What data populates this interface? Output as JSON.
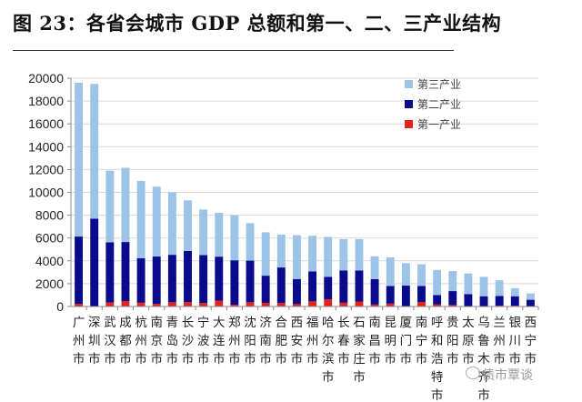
{
  "title": "图 23：各省会城市 GDP 总额和第一、二、三产业结构",
  "watermark": "债市覃谈",
  "chart_data": {
    "type": "bar",
    "stacked": true,
    "title": "图 23：各省会城市 GDP 总额和第一、二、三产业结构",
    "xlabel": "",
    "ylabel": "",
    "ylim": [
      0,
      20000
    ],
    "yticks": [
      0,
      2000,
      4000,
      6000,
      8000,
      10000,
      12000,
      14000,
      16000,
      18000,
      20000
    ],
    "grid": true,
    "legend_position": "top-right",
    "categories": [
      "广州市",
      "深圳市",
      "武汉市",
      "成都市",
      "杭州市",
      "南京市",
      "青岛市",
      "长沙市",
      "宁波市",
      "大连市",
      "郑州市",
      "沈阳市",
      "济南市",
      "合肥市",
      "西安市",
      "福州市",
      "哈尔滨市",
      "长春市",
      "石家庄市",
      "南昌市",
      "昆明市",
      "厦门市",
      "南宁市",
      "呼和浩特市",
      "贵阳市",
      "太原市",
      "乌鲁木齐市",
      "兰州市",
      "银川市",
      "西宁市"
    ],
    "series": [
      {
        "name": "第一产业",
        "color": "#e2231a",
        "values": [
          230,
          20,
          350,
          470,
          330,
          230,
          370,
          380,
          300,
          520,
          150,
          370,
          320,
          300,
          210,
          450,
          640,
          330,
          440,
          170,
          250,
          30,
          400,
          170,
          130,
          40,
          30,
          70,
          70,
          40
        ]
      },
      {
        "name": "第二产业",
        "color": "#0a0a8c",
        "values": [
          5900,
          7680,
          5280,
          5180,
          3900,
          4150,
          4160,
          4480,
          4200,
          3850,
          3900,
          3650,
          2380,
          3120,
          2200,
          2620,
          1950,
          2830,
          2720,
          2230,
          1550,
          1800,
          1400,
          830,
          1220,
          1050,
          870,
          850,
          830,
          550
        ]
      },
      {
        "name": "第三产业",
        "color": "#9dc3e6",
        "values": [
          13470,
          11800,
          6270,
          6500,
          6770,
          6120,
          5470,
          4440,
          4000,
          3830,
          3950,
          3280,
          3800,
          2880,
          3840,
          3130,
          3510,
          2740,
          2740,
          2000,
          2500,
          1970,
          1900,
          2200,
          1750,
          1810,
          1700,
          1380,
          700,
          560
        ]
      }
    ]
  }
}
